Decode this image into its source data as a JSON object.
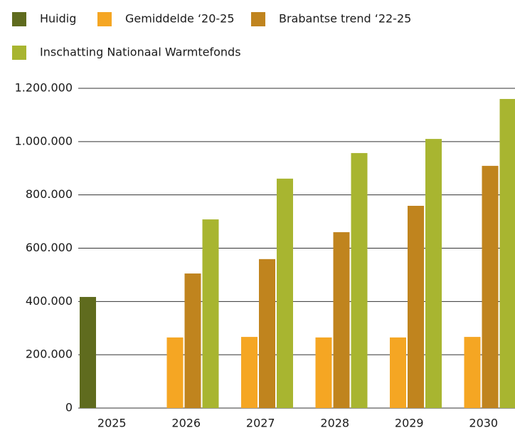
{
  "chart_data": {
    "type": "bar",
    "categories": [
      "2025",
      "2026",
      "2027",
      "2028",
      "2029",
      "2030"
    ],
    "series": [
      {
        "name": "Huidig",
        "color": "#5f6b1e",
        "values": [
          417000,
          null,
          null,
          null,
          null,
          null
        ]
      },
      {
        "name": "Gemiddelde ‘20-25",
        "color": "#f5a623",
        "values": [
          null,
          265000,
          267000,
          265000,
          265000,
          267000
        ]
      },
      {
        "name": "Brabantse trend ‘22-25",
        "color": "#c0841e",
        "values": [
          null,
          505000,
          559000,
          660000,
          759000,
          909000
        ]
      },
      {
        "name": "Inschatting Nationaal Warmtefonds",
        "color": "#a8b530",
        "values": [
          null,
          708000,
          861000,
          957000,
          1010000,
          1160000
        ]
      }
    ],
    "ylim": [
      0,
      1200000
    ],
    "yticks": [
      0,
      {
        "value": 200000,
        "label": "200.000"
      },
      {
        "value": 400000,
        "label": "400.000"
      },
      {
        "value": 600000,
        "label": "600.000"
      },
      {
        "value": 800000,
        "label": "800.000"
      },
      {
        "value": 1000000,
        "label": "1.000.000"
      },
      {
        "value": 1200000,
        "label": "1.200.000"
      }
    ],
    "grid": true
  }
}
